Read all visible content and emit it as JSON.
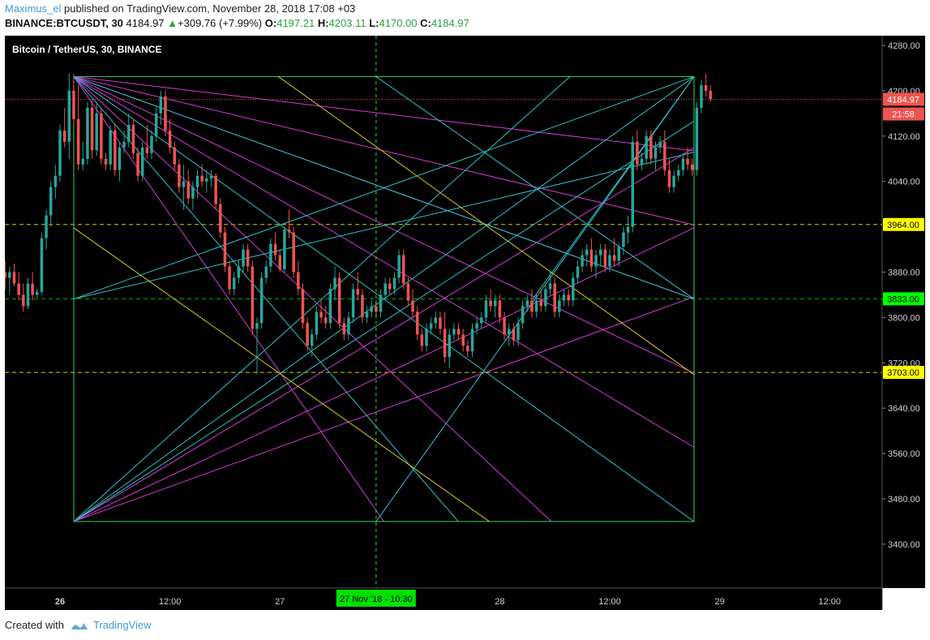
{
  "header": {
    "author": "Maximus_el",
    "published_text": "published on TradingView.com, November 28, 2018 17:08 +03",
    "symbol": "BINANCE:BTCUSDT, 30",
    "last": "4184.97",
    "change": "+309.76 (+7.99%)",
    "o_label": "O:",
    "o_value": "4197.21",
    "h_label": "H:",
    "h_value": "4203.11",
    "l_label": "L:",
    "l_value": "4170.00",
    "c_label": "C:",
    "c_value": "4184.97"
  },
  "footer": {
    "created_with": "Created with",
    "brand": "TradingView"
  },
  "chart_data": {
    "type": "candlestick",
    "title": "Bitcoin / TetherUS, 30, BINANCE",
    "ylim": [
      3320,
      4300
    ],
    "y_ticks": [
      4280,
      4200,
      4120,
      4040,
      3880,
      3800,
      3720,
      3640,
      3560,
      3480,
      3400
    ],
    "x_ticks": [
      {
        "label": "26",
        "t": 0,
        "bold": true
      },
      {
        "label": "12:00",
        "t": 12
      },
      {
        "label": "27",
        "t": 24
      },
      {
        "label": "28",
        "t": 48
      },
      {
        "label": "12:00",
        "t": 60
      },
      {
        "label": "29",
        "t": 72
      },
      {
        "label": "12:00",
        "t": 84
      }
    ],
    "x_range_hours": [
      -5.8,
      90.3
    ],
    "price_tags": [
      {
        "label": "4184.97",
        "value": 4184.97,
        "bg": "#ef5350",
        "fg": "#ffffff"
      },
      {
        "label": "21:58",
        "value": 4159,
        "bg": "#ef5350",
        "fg": "#ffffff"
      },
      {
        "label": "3964.00",
        "value": 3964,
        "bg": "#ffff00",
        "fg": "#000000"
      },
      {
        "label": "3833.00",
        "value": 3833,
        "bg": "#00ff00",
        "fg": "#000000"
      },
      {
        "label": "3703.00",
        "value": 3703,
        "bg": "#ffff00",
        "fg": "#000000"
      }
    ],
    "hlines": [
      {
        "value": 3964,
        "color": "#d4d400"
      },
      {
        "value": 3833,
        "color": "#00b300"
      },
      {
        "value": 3703,
        "color": "#d4d400"
      }
    ],
    "last_price": 4184.97,
    "crosshair": {
      "t": 34.5,
      "label": "27 Nov '18 - 10:30"
    },
    "box": {
      "t0": 1.5,
      "t1": 69.2,
      "p_top": 4225,
      "p_bot": 3440
    },
    "colors": {
      "up": "#26a69a",
      "down": "#ef5350",
      "bg": "#000000",
      "grid_line": "#39d353",
      "magenta": "#d63ad6",
      "cyan": "#2bc2c8",
      "yellow": "#d8c81a"
    },
    "candles_start_t": -6.0,
    "candle_step_hours": 0.5,
    "ohlc": [
      [
        3880,
        3900,
        3850,
        3870
      ],
      [
        3870,
        3890,
        3840,
        3880
      ],
      [
        3880,
        3895,
        3855,
        3860
      ],
      [
        3860,
        3880,
        3830,
        3840
      ],
      [
        3840,
        3860,
        3810,
        3820
      ],
      [
        3820,
        3870,
        3815,
        3860
      ],
      [
        3860,
        3880,
        3830,
        3840
      ],
      [
        3840,
        3850,
        3835,
        3845
      ],
      [
        3845,
        3950,
        3840,
        3940
      ],
      [
        3940,
        3990,
        3920,
        3980
      ],
      [
        3980,
        4040,
        3960,
        4030
      ],
      [
        4030,
        4070,
        4010,
        4050
      ],
      [
        4050,
        4140,
        4040,
        4130
      ],
      [
        4130,
        4170,
        4100,
        4110
      ],
      [
        4110,
        4230,
        4080,
        4200
      ],
      [
        4200,
        4230,
        4140,
        4150
      ],
      [
        4150,
        4210,
        4060,
        4070
      ],
      [
        4070,
        4110,
        4060,
        4080
      ],
      [
        4080,
        4180,
        4070,
        4170
      ],
      [
        4170,
        4185,
        4080,
        4095
      ],
      [
        4095,
        4180,
        4085,
        4160
      ],
      [
        4160,
        4170,
        4070,
        4080
      ],
      [
        4080,
        4090,
        4060,
        4070
      ],
      [
        4070,
        4140,
        4060,
        4130
      ],
      [
        4130,
        4140,
        4050,
        4060
      ],
      [
        4060,
        4110,
        4040,
        4100
      ],
      [
        4100,
        4130,
        4090,
        4110
      ],
      [
        4110,
        4160,
        4100,
        4140
      ],
      [
        4140,
        4150,
        4080,
        4090
      ],
      [
        4090,
        4100,
        4040,
        4050
      ],
      [
        4050,
        4110,
        4040,
        4100
      ],
      [
        4100,
        4140,
        4080,
        4090
      ],
      [
        4090,
        4130,
        4080,
        4120
      ],
      [
        4120,
        4170,
        4110,
        4160
      ],
      [
        4160,
        4200,
        4140,
        4190
      ],
      [
        4190,
        4200,
        4120,
        4130
      ],
      [
        4130,
        4150,
        4090,
        4100
      ],
      [
        4100,
        4110,
        4060,
        4070
      ],
      [
        4070,
        4080,
        4020,
        4030
      ],
      [
        4030,
        4070,
        3990,
        4040
      ],
      [
        4040,
        4060,
        4000,
        4010
      ],
      [
        4010,
        4040,
        3990,
        4030
      ],
      [
        4030,
        4060,
        4010,
        4050
      ],
      [
        4050,
        4070,
        4030,
        4040
      ],
      [
        4040,
        4060,
        4020,
        4045
      ],
      [
        4045,
        4060,
        4030,
        4050
      ],
      [
        4050,
        4055,
        3990,
        4000
      ],
      [
        4000,
        4010,
        3940,
        3950
      ],
      [
        3950,
        3960,
        3880,
        3890
      ],
      [
        3890,
        3900,
        3840,
        3850
      ],
      [
        3850,
        3880,
        3840,
        3870
      ],
      [
        3870,
        3900,
        3860,
        3890
      ],
      [
        3890,
        3930,
        3880,
        3920
      ],
      [
        3920,
        3930,
        3880,
        3890
      ],
      [
        3890,
        3900,
        3770,
        3780
      ],
      [
        3780,
        3800,
        3700,
        3790
      ],
      [
        3790,
        3880,
        3780,
        3870
      ],
      [
        3870,
        3900,
        3860,
        3890
      ],
      [
        3890,
        3940,
        3880,
        3930
      ],
      [
        3930,
        3950,
        3900,
        3910
      ],
      [
        3910,
        3920,
        3880,
        3885
      ],
      [
        3885,
        3960,
        3880,
        3955
      ],
      [
        3955,
        3990,
        3940,
        3950
      ],
      [
        3950,
        3960,
        3870,
        3880
      ],
      [
        3880,
        3900,
        3840,
        3850
      ],
      [
        3850,
        3860,
        3780,
        3790
      ],
      [
        3790,
        3800,
        3740,
        3750
      ],
      [
        3750,
        3780,
        3730,
        3770
      ],
      [
        3770,
        3820,
        3760,
        3810
      ],
      [
        3810,
        3830,
        3790,
        3800
      ],
      [
        3800,
        3820,
        3780,
        3790
      ],
      [
        3790,
        3860,
        3780,
        3850
      ],
      [
        3850,
        3890,
        3830,
        3870
      ],
      [
        3870,
        3880,
        3780,
        3790
      ],
      [
        3790,
        3800,
        3760,
        3770
      ],
      [
        3770,
        3810,
        3760,
        3800
      ],
      [
        3800,
        3860,
        3790,
        3850
      ],
      [
        3850,
        3880,
        3830,
        3840
      ],
      [
        3840,
        3850,
        3790,
        3800
      ],
      [
        3800,
        3820,
        3790,
        3810
      ],
      [
        3810,
        3830,
        3800,
        3820
      ],
      [
        3820,
        3830,
        3800,
        3810
      ],
      [
        3810,
        3850,
        3800,
        3840
      ],
      [
        3840,
        3870,
        3830,
        3860
      ],
      [
        3860,
        3870,
        3840,
        3850
      ],
      [
        3850,
        3880,
        3840,
        3870
      ],
      [
        3870,
        3920,
        3860,
        3910
      ],
      [
        3910,
        3920,
        3850,
        3860
      ],
      [
        3860,
        3870,
        3820,
        3830
      ],
      [
        3830,
        3850,
        3800,
        3810
      ],
      [
        3810,
        3820,
        3760,
        3770
      ],
      [
        3770,
        3780,
        3740,
        3750
      ],
      [
        3750,
        3790,
        3740,
        3780
      ],
      [
        3780,
        3800,
        3770,
        3790
      ],
      [
        3790,
        3810,
        3780,
        3800
      ],
      [
        3800,
        3810,
        3770,
        3780
      ],
      [
        3780,
        3810,
        3720,
        3730
      ],
      [
        3730,
        3780,
        3710,
        3770
      ],
      [
        3770,
        3790,
        3760,
        3780
      ],
      [
        3780,
        3790,
        3760,
        3770
      ],
      [
        3770,
        3780,
        3740,
        3750
      ],
      [
        3750,
        3760,
        3730,
        3740
      ],
      [
        3740,
        3790,
        3730,
        3780
      ],
      [
        3780,
        3800,
        3770,
        3790
      ],
      [
        3790,
        3810,
        3780,
        3800
      ],
      [
        3800,
        3840,
        3790,
        3830
      ],
      [
        3830,
        3850,
        3810,
        3820
      ],
      [
        3820,
        3840,
        3800,
        3830
      ],
      [
        3830,
        3840,
        3790,
        3800
      ],
      [
        3800,
        3810,
        3760,
        3770
      ],
      [
        3770,
        3790,
        3750,
        3780
      ],
      [
        3780,
        3790,
        3750,
        3760
      ],
      [
        3760,
        3800,
        3750,
        3790
      ],
      [
        3790,
        3830,
        3780,
        3820
      ],
      [
        3820,
        3840,
        3810,
        3830
      ],
      [
        3830,
        3850,
        3800,
        3810
      ],
      [
        3810,
        3840,
        3800,
        3830
      ],
      [
        3830,
        3850,
        3810,
        3820
      ],
      [
        3820,
        3860,
        3810,
        3850
      ],
      [
        3850,
        3880,
        3840,
        3860
      ],
      [
        3860,
        3870,
        3800,
        3810
      ],
      [
        3810,
        3840,
        3800,
        3830
      ],
      [
        3830,
        3850,
        3820,
        3840
      ],
      [
        3840,
        3850,
        3820,
        3830
      ],
      [
        3830,
        3880,
        3820,
        3870
      ],
      [
        3870,
        3900,
        3860,
        3890
      ],
      [
        3890,
        3920,
        3880,
        3910
      ],
      [
        3910,
        3930,
        3890,
        3920
      ],
      [
        3920,
        3940,
        3880,
        3890
      ],
      [
        3890,
        3920,
        3870,
        3910
      ],
      [
        3910,
        3930,
        3890,
        3920
      ],
      [
        3920,
        3930,
        3880,
        3890
      ],
      [
        3890,
        3920,
        3880,
        3910
      ],
      [
        3910,
        3940,
        3890,
        3900
      ],
      [
        3900,
        3930,
        3890,
        3925
      ],
      [
        3925,
        3960,
        3910,
        3950
      ],
      [
        3950,
        3980,
        3930,
        3960
      ],
      [
        3960,
        4120,
        3950,
        4110
      ],
      [
        4110,
        4130,
        4060,
        4070
      ],
      [
        4070,
        4090,
        4060,
        4080
      ],
      [
        4080,
        4130,
        4070,
        4120
      ],
      [
        4120,
        4130,
        4070,
        4080
      ],
      [
        4080,
        4110,
        4060,
        4100
      ],
      [
        4100,
        4120,
        4090,
        4110
      ],
      [
        4110,
        4130,
        4050,
        4060
      ],
      [
        4060,
        4080,
        4020,
        4030
      ],
      [
        4030,
        4060,
        4020,
        4050
      ],
      [
        4050,
        4070,
        4040,
        4060
      ],
      [
        4060,
        4090,
        4050,
        4080
      ],
      [
        4080,
        4100,
        4060,
        4070
      ],
      [
        4070,
        4080,
        4050,
        4060
      ],
      [
        4060,
        4180,
        4050,
        4170
      ],
      [
        4170,
        4220,
        4160,
        4210
      ],
      [
        4210,
        4230,
        4190,
        4200
      ],
      [
        4200,
        4210,
        4180,
        4185
      ]
    ]
  }
}
